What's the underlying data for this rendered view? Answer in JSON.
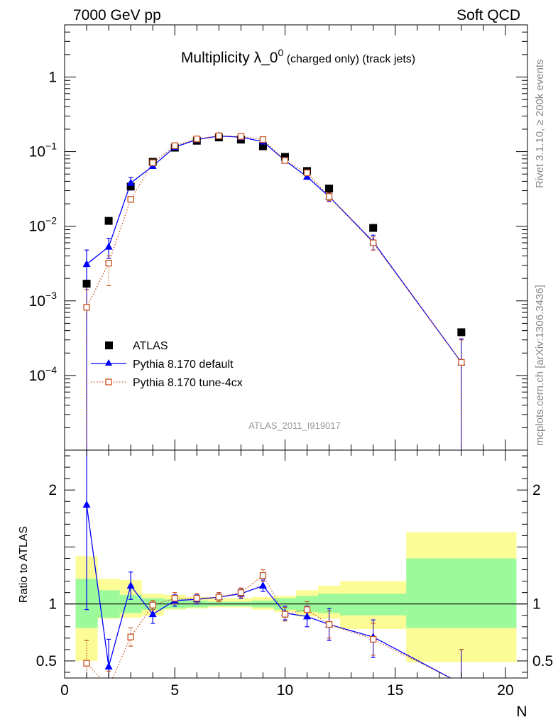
{
  "header": {
    "left": "7000 GeV pp",
    "right": "Soft QCD"
  },
  "side_labels": {
    "rivet": "Rivet 3.1.10, ≥ 200k events",
    "mcplots": "mcplots.cern.ch [arXiv:1306.3436]"
  },
  "chart_data": [
    {
      "type": "scatter",
      "title": "Multiplicity λ_0",
      "title_sup": "0",
      "title_suffix": " (charged only) (track jets)",
      "analysis_id": "ATLAS_2011_I919017",
      "yscale": "log",
      "xlim": [
        0,
        21
      ],
      "ylim": [
        1e-05,
        5
      ],
      "y_tick_labels": [
        {
          "value": 1,
          "base": "1",
          "exp": ""
        },
        {
          "value": 0.1,
          "base": "10",
          "exp": "−1"
        },
        {
          "value": 0.01,
          "base": "10",
          "exp": "−2"
        },
        {
          "value": 0.001,
          "base": "10",
          "exp": "−3"
        },
        {
          "value": 0.0001,
          "base": "10",
          "exp": "−4"
        }
      ],
      "legend": {
        "position": "middle-left",
        "entries": [
          "ATLAS",
          "Pythia 8.170 default",
          "Pythia 8.170 tune-4cx"
        ]
      },
      "series": [
        {
          "name": "ATLAS",
          "color": "#000000",
          "marker": "filled-square",
          "x": [
            1,
            2,
            3,
            4,
            5,
            6,
            7,
            8,
            9,
            10,
            11,
            12,
            14,
            18
          ],
          "y": [
            0.0017,
            0.0118,
            0.034,
            0.073,
            0.113,
            0.14,
            0.155,
            0.145,
            0.118,
            0.085,
            0.055,
            0.032,
            0.0095,
            0.00038
          ]
        },
        {
          "name": "Pythia 8.170 default",
          "color": "#0000ff",
          "marker": "filled-triangle",
          "line": "solid",
          "x": [
            1,
            2,
            3,
            4,
            5,
            6,
            7,
            8,
            9,
            10,
            11,
            12,
            14,
            18
          ],
          "y": [
            0.0031,
            0.0053,
            0.038,
            0.064,
            0.115,
            0.145,
            0.162,
            0.156,
            0.136,
            0.076,
            0.046,
            0.025,
            0.0062,
            0.00015
          ],
          "err_low": [
            0.0031,
            0.0016,
            0.004,
            0.004,
            0.004,
            0.004,
            0.004,
            0.004,
            0.004,
            0.003,
            0.0035,
            0.0035,
            0.0014,
            0.00015
          ],
          "err_high": [
            0.0017,
            0.0016,
            0.007,
            0.004,
            0.004,
            0.004,
            0.004,
            0.004,
            0.004,
            0.003,
            0.0035,
            0.0035,
            0.0014,
            0.00016
          ]
        },
        {
          "name": "Pythia 8.170 tune-4cx",
          "color": "#c8531e",
          "marker": "open-square",
          "line": "dotted",
          "x": [
            1,
            2,
            3,
            4,
            5,
            6,
            7,
            8,
            9,
            10,
            11,
            12,
            14,
            18
          ],
          "y": [
            0.00082,
            0.0032,
            0.023,
            0.071,
            0.12,
            0.148,
            0.163,
            0.16,
            0.145,
            0.076,
            0.052,
            0.025,
            0.006,
            0.00015
          ],
          "err_low": [
            0.00082,
            0.0016,
            0.002,
            0.002,
            0.003,
            0.003,
            0.003,
            0.003,
            0.003,
            0.003,
            0.003,
            0.003,
            0.0012,
            0.00015
          ],
          "err_high": [
            0.0006,
            0.0008,
            0.002,
            0.002,
            0.003,
            0.003,
            0.003,
            0.003,
            0.003,
            0.003,
            0.003,
            0.003,
            0.0012,
            0.00015
          ]
        }
      ]
    },
    {
      "type": "line",
      "ylabel": "Ratio to ATLAS",
      "xlabel": "N",
      "xlim": [
        0,
        21
      ],
      "ylim": [
        0.35,
        2.35
      ],
      "x_ticks": [
        0,
        5,
        10,
        15,
        20
      ],
      "y_ticks": [
        0.5,
        1,
        2
      ],
      "reference_line": 1,
      "band_colors": {
        "inner": "#9cf99c",
        "outer": "#fcfc96"
      },
      "uncertainty_bands": [
        {
          "x0": 0.5,
          "x1": 1.5,
          "inner": [
            0.79,
            1.22
          ],
          "outer": [
            0.5,
            1.42
          ]
        },
        {
          "x0": 1.5,
          "x1": 2.5,
          "inner": [
            0.88,
            1.12
          ],
          "outer": [
            0.87,
            1.22
          ]
        },
        {
          "x0": 2.5,
          "x1": 3.5,
          "inner": [
            0.92,
            1.08
          ],
          "outer": [
            0.88,
            1.21
          ]
        },
        {
          "x0": 3.5,
          "x1": 4.5,
          "inner": [
            0.95,
            1.05
          ],
          "outer": [
            0.9,
            1.09
          ]
        },
        {
          "x0": 4.5,
          "x1": 5.5,
          "inner": [
            0.96,
            1.04
          ],
          "outer": [
            0.95,
            1.08
          ]
        },
        {
          "x0": 5.5,
          "x1": 6.5,
          "inner": [
            0.97,
            1.03
          ],
          "outer": [
            0.96,
            1.06
          ]
        },
        {
          "x0": 6.5,
          "x1": 7.5,
          "inner": [
            0.98,
            1.02
          ],
          "outer": [
            0.97,
            1.05
          ]
        },
        {
          "x0": 7.5,
          "x1": 8.5,
          "inner": [
            0.98,
            1.02
          ],
          "outer": [
            0.97,
            1.05
          ]
        },
        {
          "x0": 8.5,
          "x1": 9.5,
          "inner": [
            0.97,
            1.03
          ],
          "outer": [
            0.95,
            1.06
          ]
        },
        {
          "x0": 9.5,
          "x1": 10.5,
          "inner": [
            0.95,
            1.05
          ],
          "outer": [
            0.93,
            1.07
          ]
        },
        {
          "x0": 10.5,
          "x1": 11.5,
          "inner": [
            0.93,
            1.07
          ],
          "outer": [
            0.89,
            1.12
          ]
        },
        {
          "x0": 11.5,
          "x1": 12.5,
          "inner": [
            0.92,
            1.09
          ],
          "outer": [
            0.87,
            1.16
          ]
        },
        {
          "x0": 12.5,
          "x1": 15.5,
          "inner": [
            0.9,
            1.09
          ],
          "outer": [
            0.78,
            1.2
          ]
        },
        {
          "x0": 15.5,
          "x1": 20.5,
          "inner": [
            0.79,
            1.4
          ],
          "outer": [
            0.49,
            1.63
          ]
        }
      ],
      "series": [
        {
          "name": "Pythia 8.170 default",
          "color": "#0000ff",
          "marker": "filled-triangle",
          "line": "solid",
          "x": [
            1,
            2,
            3,
            4,
            5,
            6,
            7,
            8,
            9,
            10,
            11,
            12,
            14,
            18
          ],
          "y": [
            1.87,
            0.45,
            1.16,
            0.91,
            1.03,
            1.04,
            1.06,
            1.09,
            1.16,
            0.92,
            0.89,
            0.82,
            0.71,
            0.3
          ],
          "err_low": [
            0.92,
            0.25,
            0.12,
            0.08,
            0.05,
            0.04,
            0.04,
            0.04,
            0.05,
            0.06,
            0.09,
            0.14,
            0.18,
            0.3
          ],
          "err_high": [
            0.95,
            0.24,
            0.12,
            0.08,
            0.05,
            0.04,
            0.04,
            0.04,
            0.05,
            0.06,
            0.09,
            0.14,
            0.15,
            0.3
          ]
        },
        {
          "name": "Pythia 8.170 tune-4cx",
          "color": "#c8531e",
          "marker": "open-square",
          "line": "dotted",
          "x": [
            1,
            2,
            3,
            4,
            5,
            6,
            7,
            8,
            9,
            10,
            11,
            12,
            14,
            18
          ],
          "y": [
            0.48,
            0.27,
            0.71,
            0.99,
            1.05,
            1.05,
            1.06,
            1.1,
            1.25,
            0.91,
            0.95,
            0.82,
            0.69,
            0.3
          ],
          "err_low": [
            0.2,
            0.14,
            0.08,
            0.04,
            0.05,
            0.04,
            0.04,
            0.04,
            0.05,
            0.06,
            0.07,
            0.12,
            0.14,
            0.3
          ],
          "err_high": [
            0.2,
            0.14,
            0.08,
            0.04,
            0.05,
            0.04,
            0.04,
            0.04,
            0.05,
            0.06,
            0.07,
            0.12,
            0.14,
            0.3
          ]
        }
      ]
    }
  ]
}
